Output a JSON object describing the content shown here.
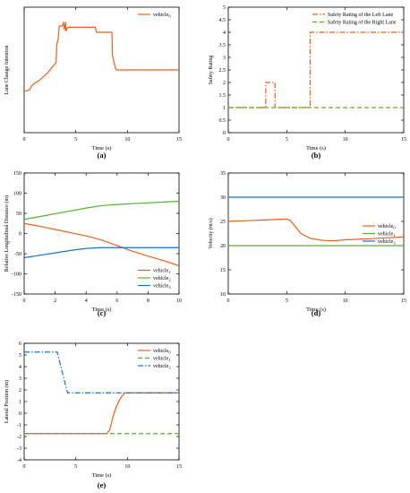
{
  "colors": {
    "orange": "#e8601c",
    "green": "#55b02e",
    "blue": "#1f6fc2",
    "axis": "#000000"
  },
  "chart_data": [
    {
      "id": "a",
      "panel_label": "(a)",
      "type": "line",
      "xlabel": "Time (s)",
      "ylabel": "Lane Change Intention",
      "xlim": [
        0,
        15
      ],
      "ylim": [
        0,
        1
      ],
      "xticks": [
        0,
        5,
        10,
        15
      ],
      "yticks": [],
      "legend": "top-right",
      "series": [
        {
          "name": "vehicle",
          "sub": "0",
          "color": "orange",
          "dash": "solid",
          "points": [
            [
              0,
              0.33
            ],
            [
              0.5,
              0.34
            ],
            [
              0.8,
              0.38
            ],
            [
              1.5,
              0.42
            ],
            [
              2.2,
              0.47
            ],
            [
              2.7,
              0.52
            ],
            [
              3.0,
              0.55
            ],
            [
              3.1,
              0.56
            ],
            [
              3.15,
              0.7
            ],
            [
              3.3,
              0.75
            ],
            [
              3.4,
              0.85
            ],
            [
              3.7,
              0.85
            ],
            [
              3.8,
              0.88
            ],
            [
              3.9,
              0.82
            ],
            [
              4.0,
              0.88
            ],
            [
              4.05,
              0.81
            ],
            [
              4.2,
              0.84
            ],
            [
              6.9,
              0.84
            ],
            [
              7.0,
              0.8
            ],
            [
              8.5,
              0.8
            ],
            [
              8.55,
              0.62
            ],
            [
              8.7,
              0.56
            ],
            [
              8.85,
              0.51
            ],
            [
              9.0,
              0.5
            ],
            [
              15,
              0.5
            ]
          ]
        }
      ]
    },
    {
      "id": "b",
      "panel_label": "(b)",
      "type": "line",
      "xlabel": "Time (s)",
      "ylabel": "Safety Rating",
      "xlim": [
        0,
        15
      ],
      "ylim": [
        0,
        5
      ],
      "xticks": [
        0,
        5,
        10,
        15
      ],
      "yticks": [
        0,
        0.5,
        1,
        1.5,
        2,
        2.5,
        3,
        3.5,
        4,
        4.5,
        5
      ],
      "legend": "top-right",
      "series": [
        {
          "name": "Safety Rating of the Left Lane",
          "color": "orange",
          "dash": "dashdot",
          "points": [
            [
              0,
              1
            ],
            [
              3.2,
              1
            ],
            [
              3.2,
              2
            ],
            [
              4.0,
              2
            ],
            [
              4.0,
              1
            ],
            [
              7.0,
              1
            ],
            [
              7.0,
              4
            ],
            [
              15,
              4
            ]
          ]
        },
        {
          "name": "Safety Rating of the Right Lane",
          "color": "green",
          "dash": "dashed",
          "points": [
            [
              0,
              1
            ],
            [
              15,
              1
            ]
          ]
        }
      ]
    },
    {
      "id": "c",
      "panel_label": "(c)",
      "type": "line",
      "xlabel": "Time (s)",
      "ylabel": "Relative Longitudinal Distance (m)",
      "xlim": [
        0,
        10
      ],
      "ylim": [
        -150,
        150
      ],
      "xticks": [
        0,
        2,
        4,
        6,
        8,
        10
      ],
      "yticks": [
        -150,
        -100,
        -50,
        0,
        50,
        100,
        150
      ],
      "legend": "bottom-right",
      "series": [
        {
          "name": "vehicle",
          "sub": "1",
          "color": "orange",
          "dash": "solid",
          "points": [
            [
              0,
              25
            ],
            [
              1,
              18
            ],
            [
              2,
              10
            ],
            [
              3,
              2
            ],
            [
              4,
              -6
            ],
            [
              5,
              -16
            ],
            [
              6,
              -30
            ],
            [
              7,
              -44
            ],
            [
              8,
              -56
            ],
            [
              9,
              -67
            ],
            [
              10,
              -80
            ]
          ]
        },
        {
          "name": "vehicle",
          "sub": "2",
          "color": "green",
          "dash": "solid",
          "points": [
            [
              0,
              35
            ],
            [
              1,
              42
            ],
            [
              2,
              49
            ],
            [
              3,
              56
            ],
            [
              4,
              63
            ],
            [
              5,
              69
            ],
            [
              6,
              72
            ],
            [
              7,
              74
            ],
            [
              8,
              76
            ],
            [
              9,
              78
            ],
            [
              10,
              80
            ]
          ]
        },
        {
          "name": "vehicle",
          "sub": "3",
          "color": "blue",
          "dash": "solid",
          "points": [
            [
              0,
              -60
            ],
            [
              1,
              -54
            ],
            [
              2,
              -48
            ],
            [
              3,
              -42
            ],
            [
              4,
              -37
            ],
            [
              5,
              -35
            ],
            [
              6,
              -35
            ],
            [
              7,
              -35
            ],
            [
              8,
              -35
            ],
            [
              9,
              -35
            ],
            [
              10,
              -35
            ]
          ]
        }
      ]
    },
    {
      "id": "d",
      "panel_label": "(d)",
      "type": "line",
      "xlabel": "Time (s)",
      "ylabel": "Velocity (m/s)",
      "xlim": [
        0,
        15
      ],
      "ylim": [
        10,
        35
      ],
      "xticks": [
        0,
        5,
        10,
        15
      ],
      "yticks": [
        10,
        15,
        20,
        25,
        30,
        35
      ],
      "legend": "middle-right",
      "series": [
        {
          "name": "vehicle",
          "sub": "0",
          "color": "orange",
          "dash": "solid",
          "points": [
            [
              0,
              25
            ],
            [
              1,
              25.1
            ],
            [
              2,
              25.2
            ],
            [
              3,
              25.3
            ],
            [
              4,
              25.4
            ],
            [
              5,
              25.5
            ],
            [
              5.3,
              25.2
            ],
            [
              5.7,
              24
            ],
            [
              6.2,
              22.5
            ],
            [
              7,
              21.5
            ],
            [
              8,
              21.1
            ],
            [
              9,
              21.0
            ],
            [
              10,
              21.2
            ],
            [
              12,
              21.4
            ],
            [
              15,
              21.8
            ]
          ]
        },
        {
          "name": "vehicle",
          "sub": "1",
          "color": "green",
          "dash": "solid",
          "points": [
            [
              0,
              20
            ],
            [
              15,
              20
            ]
          ]
        },
        {
          "name": "vehicle",
          "sub": "3",
          "color": "blue",
          "dash": "solid",
          "points": [
            [
              0,
              30
            ],
            [
              15,
              30
            ]
          ]
        }
      ]
    },
    {
      "id": "e",
      "panel_label": "(e)",
      "type": "line",
      "xlabel": "Time (s)",
      "ylabel": "Lateral Position (m)",
      "xlim": [
        0,
        15
      ],
      "ylim": [
        -4,
        6
      ],
      "xticks": [
        0,
        5,
        10,
        15
      ],
      "yticks": [
        -4,
        -3,
        -2,
        -1,
        0,
        1,
        2,
        3,
        4,
        5,
        6
      ],
      "legend": "top-right",
      "series": [
        {
          "name": "vehicle",
          "sub": "0",
          "color": "orange",
          "dash": "solid",
          "points": [
            [
              0,
              -1.75
            ],
            [
              8.0,
              -1.75
            ],
            [
              8.3,
              -1.4
            ],
            [
              8.6,
              -0.3
            ],
            [
              8.9,
              0.5
            ],
            [
              9.2,
              1.1
            ],
            [
              9.5,
              1.5
            ],
            [
              9.8,
              1.75
            ],
            [
              15,
              1.75
            ]
          ]
        },
        {
          "name": "vehicle",
          "sub": "1",
          "color": "green",
          "dash": "dashed",
          "points": [
            [
              0,
              -1.75
            ],
            [
              15,
              -1.75
            ]
          ]
        },
        {
          "name": "vehicle",
          "sub": "3",
          "color": "blue",
          "dash": "dashdot",
          "points": [
            [
              0,
              5.25
            ],
            [
              3.2,
              5.25
            ],
            [
              4.2,
              1.75
            ],
            [
              15,
              1.75
            ]
          ]
        }
      ]
    }
  ]
}
